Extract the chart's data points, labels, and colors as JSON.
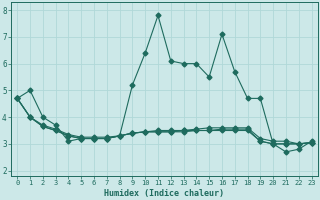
{
  "xlabel": "Humidex (Indice chaleur)",
  "background_color": "#cce8e8",
  "line_color": "#1e6b5e",
  "grid_color": "#b0d8d8",
  "xlim": [
    -0.5,
    23.5
  ],
  "ylim": [
    1.8,
    8.3
  ],
  "xticks": [
    0,
    1,
    2,
    3,
    4,
    5,
    6,
    7,
    8,
    9,
    10,
    11,
    12,
    13,
    14,
    15,
    16,
    17,
    18,
    19,
    20,
    21,
    22,
    23
  ],
  "yticks": [
    2,
    3,
    4,
    5,
    6,
    7,
    8
  ],
  "series": [
    [
      4.7,
      5.0,
      4.0,
      3.7,
      3.1,
      3.2,
      3.2,
      3.2,
      3.3,
      5.2,
      6.4,
      7.8,
      6.1,
      6.0,
      6.0,
      5.5,
      7.1,
      5.7,
      4.7,
      4.7,
      3.0,
      2.7,
      2.8,
      3.1
    ],
    [
      4.7,
      4.0,
      3.65,
      3.5,
      3.3,
      3.2,
      3.2,
      3.2,
      3.3,
      3.4,
      3.45,
      3.5,
      3.5,
      3.5,
      3.55,
      3.6,
      3.6,
      3.6,
      3.6,
      3.2,
      3.1,
      3.1,
      3.0,
      3.05
    ],
    [
      4.7,
      4.0,
      3.65,
      3.5,
      3.3,
      3.2,
      3.2,
      3.2,
      3.3,
      3.4,
      3.45,
      3.45,
      3.45,
      3.5,
      3.5,
      3.5,
      3.55,
      3.55,
      3.55,
      3.1,
      3.0,
      3.0,
      3.0,
      3.05
    ],
    [
      4.7,
      4.0,
      3.7,
      3.55,
      3.35,
      3.25,
      3.25,
      3.25,
      3.3,
      3.4,
      3.45,
      3.45,
      3.45,
      3.45,
      3.5,
      3.5,
      3.5,
      3.5,
      3.5,
      3.1,
      3.0,
      3.0,
      3.0,
      3.05
    ]
  ],
  "marker": "D",
  "markersize": 2.5,
  "linewidth": 0.8
}
